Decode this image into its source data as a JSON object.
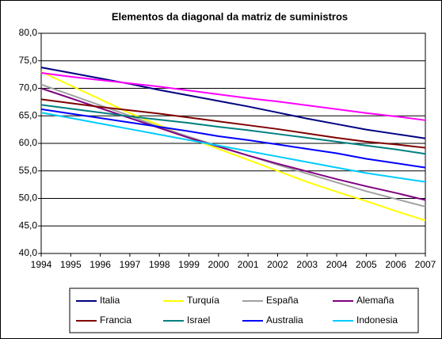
{
  "chart_data": {
    "type": "line",
    "title": "Elementos da diagonal da matriz de suministros",
    "x": [
      1994,
      1995,
      1996,
      1997,
      1998,
      1999,
      2000,
      2001,
      2002,
      2003,
      2004,
      2005,
      2006,
      2007
    ],
    "xlim": [
      1994,
      2007
    ],
    "xticks": [
      1994,
      1995,
      1996,
      1997,
      1998,
      1999,
      2000,
      2001,
      2002,
      2003,
      2004,
      2005,
      2006,
      2007
    ],
    "ylim": [
      40,
      80
    ],
    "yticks": [
      {
        "value": 40,
        "label": "40,0"
      },
      {
        "value": 45,
        "label": "45,0"
      },
      {
        "value": 50,
        "label": "50,0"
      },
      {
        "value": 55,
        "label": "55,0"
      },
      {
        "value": 60,
        "label": "60,0"
      },
      {
        "value": 65,
        "label": "65,0"
      },
      {
        "value": 70,
        "label": "70,0"
      },
      {
        "value": 75,
        "label": "75,0"
      },
      {
        "value": 80,
        "label": "80,0"
      }
    ],
    "grid": true,
    "legend": "bottom",
    "series": [
      {
        "name": "Italia",
        "color": "#000080",
        "values": [
          73.8,
          72.8,
          71.8,
          70.8,
          69.7,
          68.7,
          67.7,
          66.7,
          65.6,
          64.5,
          63.5,
          62.5,
          61.7,
          60.9
        ]
      },
      {
        "name": "Turquía",
        "color": "#ffff00",
        "values": [
          73.0,
          70.5,
          68.0,
          65.5,
          63.3,
          61.0,
          59.0,
          57.0,
          55.0,
          53.0,
          51.2,
          49.5,
          47.7,
          46.0
        ]
      },
      {
        "name": "España",
        "color": "#a0a0a0",
        "values": [
          70.7,
          68.8,
          66.9,
          65.0,
          63.0,
          61.2,
          59.5,
          57.8,
          56.1,
          54.5,
          52.9,
          51.3,
          49.9,
          48.5
        ]
      },
      {
        "name": "Alemaña",
        "color": "#800080",
        "values": [
          70.0,
          68.2,
          66.4,
          64.6,
          62.8,
          61.0,
          59.4,
          57.8,
          56.3,
          54.9,
          53.5,
          52.2,
          51.0,
          49.7
        ]
      },
      {
        "name": "Francia",
        "color": "#800000",
        "values": [
          68.0,
          67.3,
          66.6,
          66.0,
          65.4,
          64.7,
          64.0,
          63.3,
          62.6,
          61.8,
          61.0,
          60.3,
          59.8,
          59.2
        ]
      },
      {
        "name": "Israel",
        "color": "#008080",
        "values": [
          67.0,
          66.3,
          65.6,
          64.9,
          64.3,
          63.7,
          63.0,
          62.4,
          61.7,
          61.0,
          60.3,
          59.6,
          58.9,
          58.1
        ]
      },
      {
        "name": "Australia",
        "color": "#0000ff",
        "values": [
          66.2,
          65.4,
          64.6,
          63.8,
          63.0,
          62.2,
          61.3,
          60.6,
          59.8,
          59.0,
          58.2,
          57.2,
          56.4,
          55.6
        ]
      },
      {
        "name": "Indonesia",
        "color": "#00ccff",
        "values": [
          65.6,
          64.6,
          63.6,
          62.6,
          61.6,
          60.6,
          59.6,
          58.6,
          57.6,
          56.6,
          55.6,
          54.6,
          53.8,
          53.0
        ]
      },
      {
        "color": "#ff00ff",
        "values": [
          72.8,
          72.1,
          71.5,
          70.9,
          70.3,
          69.6,
          68.9,
          68.2,
          67.6,
          66.9,
          66.2,
          65.5,
          64.9,
          64.2
        ]
      }
    ]
  }
}
